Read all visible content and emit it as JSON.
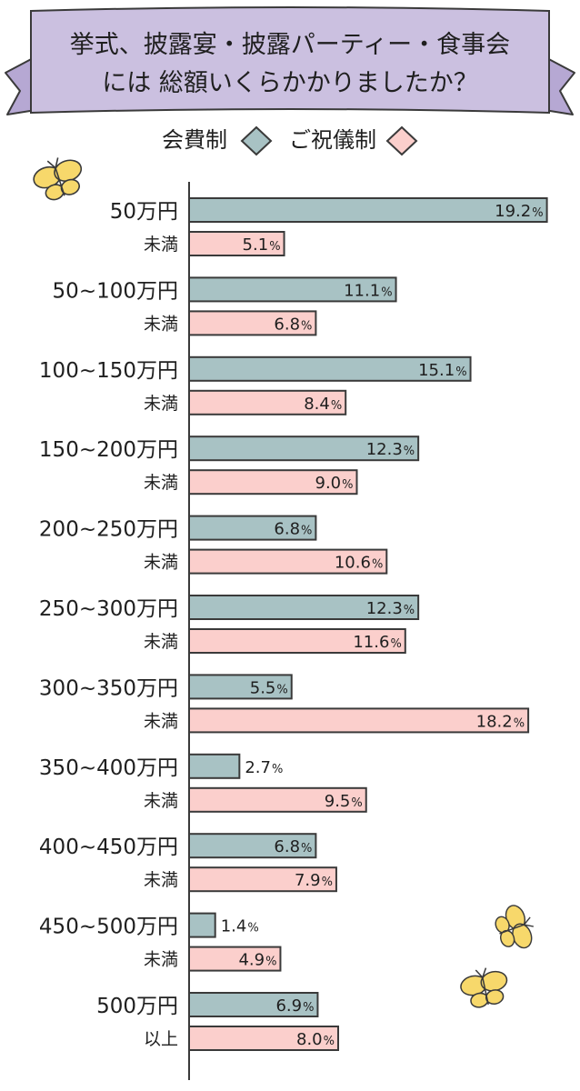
{
  "title": {
    "line1": "挙式、披露宴・披露パーティー・食事会",
    "line2": "には 総額いくらかかりましたか？"
  },
  "colors": {
    "banner_fill": "#cbc0e0",
    "banner_tail": "#b6a8d3",
    "series_a": "#a8c2c4",
    "series_b": "#fbcfcc",
    "outline": "#3a3a3a",
    "butterfly": "#f7d86b"
  },
  "chart_data": {
    "type": "bar",
    "orientation": "horizontal",
    "categories": [
      {
        "main": "50万円",
        "sub": "未満"
      },
      {
        "main": "50~100万円",
        "sub": "未満"
      },
      {
        "main": "100~150万円",
        "sub": "未満"
      },
      {
        "main": "150~200万円",
        "sub": "未満"
      },
      {
        "main": "200~250万円",
        "sub": "未満"
      },
      {
        "main": "250~300万円",
        "sub": "未満"
      },
      {
        "main": "300~350万円",
        "sub": "未満"
      },
      {
        "main": "350~400万円",
        "sub": "未満"
      },
      {
        "main": "400~450万円",
        "sub": "未満"
      },
      {
        "main": "450~500万円",
        "sub": "未満"
      },
      {
        "main": "500万円",
        "sub": "以上"
      }
    ],
    "series": [
      {
        "name": "会費制",
        "values": [
          19.2,
          11.1,
          15.1,
          12.3,
          6.8,
          12.3,
          5.5,
          2.7,
          6.8,
          1.4,
          6.9
        ]
      },
      {
        "name": "ご祝儀制",
        "values": [
          5.1,
          6.8,
          8.4,
          9.0,
          10.6,
          11.6,
          18.2,
          9.5,
          7.9,
          4.9,
          8.0
        ]
      }
    ],
    "unit": "%",
    "xlim": [
      0,
      20
    ],
    "grid": false,
    "legend_position": "top-center"
  }
}
